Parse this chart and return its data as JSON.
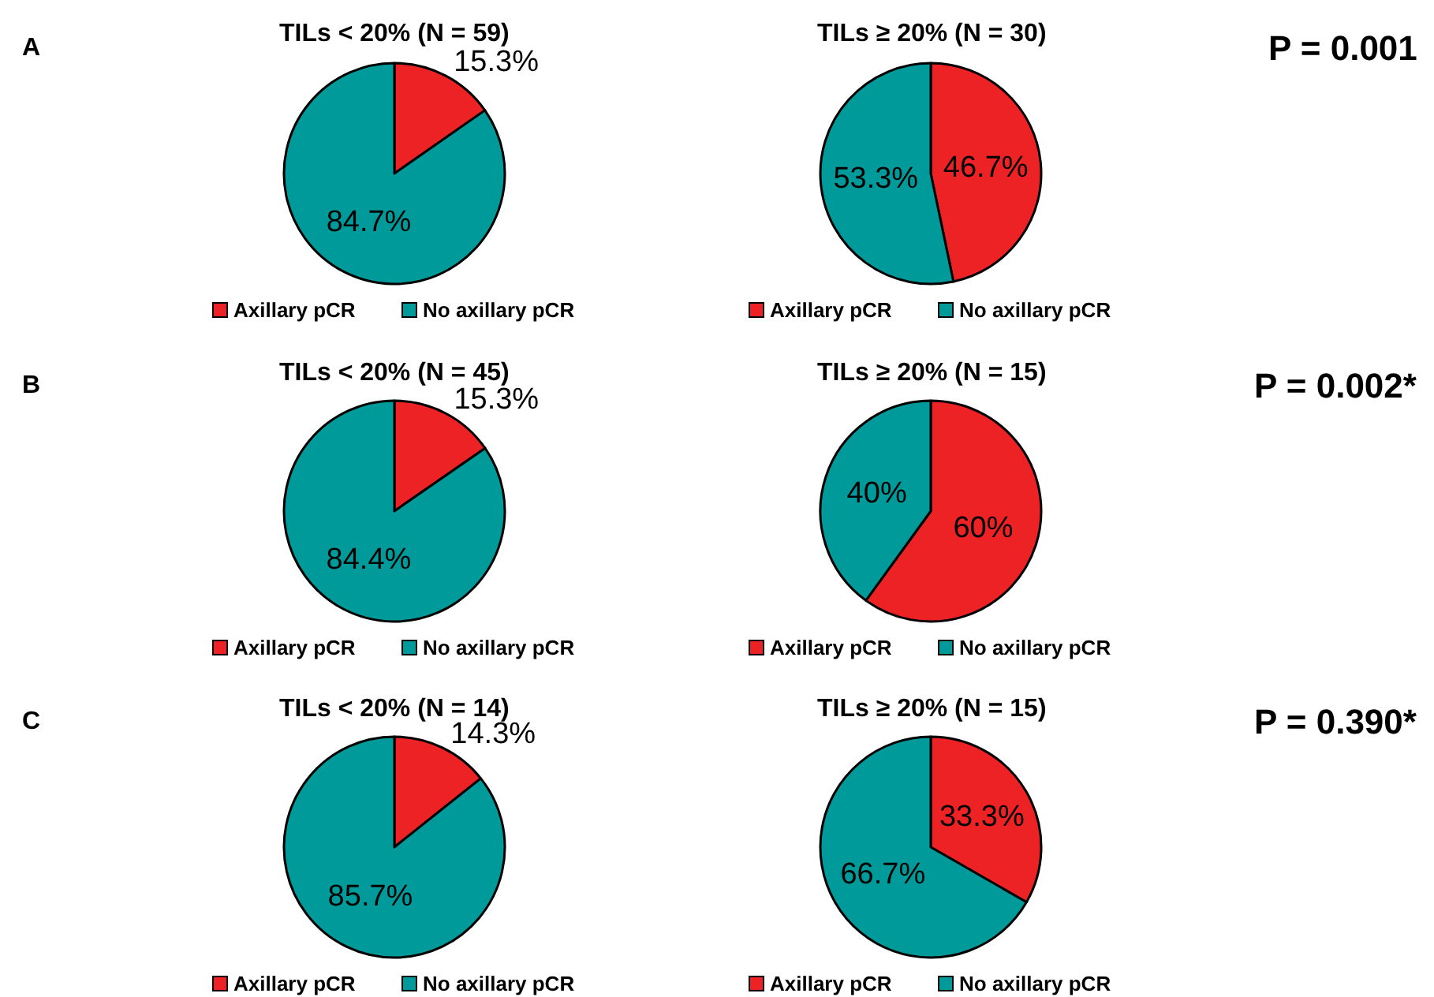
{
  "chart_data": [
    {
      "type": "pie",
      "title": "TILs < 20% (N = 59)",
      "categories": [
        "Axillary pCR",
        "No axillary pCR"
      ],
      "values": [
        15.3,
        84.7
      ],
      "value_labels": [
        "15.3%",
        "84.7%"
      ],
      "colors": [
        "#ed2224",
        "#009a9a"
      ],
      "legend": "bottom",
      "annotations": [
        "A"
      ]
    },
    {
      "type": "pie",
      "title": "TILs ≥ 20% (N = 30)",
      "categories": [
        "Axillary pCR",
        "No axillary pCR"
      ],
      "values": [
        46.7,
        53.3
      ],
      "value_labels": [
        "46.7%",
        "53.3%"
      ],
      "colors": [
        "#ed2224",
        "#009a9a"
      ],
      "legend": "bottom",
      "annotations": [
        "P = 0.001"
      ]
    },
    {
      "type": "pie",
      "title": "TILs < 20% (N = 45)",
      "categories": [
        "Axillary pCR",
        "No axillary pCR"
      ],
      "values": [
        15.3,
        84.4
      ],
      "value_labels": [
        "15.3%",
        "84.4%"
      ],
      "colors": [
        "#ed2224",
        "#009a9a"
      ],
      "legend": "bottom",
      "annotations": [
        "B"
      ]
    },
    {
      "type": "pie",
      "title": "TILs ≥ 20% (N = 15)",
      "categories": [
        "Axillary pCR",
        "No axillary pCR"
      ],
      "values": [
        60,
        40
      ],
      "value_labels": [
        "60%",
        "40%"
      ],
      "colors": [
        "#ed2224",
        "#009a9a"
      ],
      "legend": "bottom",
      "annotations": [
        "P = 0.002*"
      ]
    },
    {
      "type": "pie",
      "title": "TILs < 20% (N = 14)",
      "categories": [
        "Axillary pCR",
        "No axillary pCR"
      ],
      "values": [
        14.3,
        85.7
      ],
      "value_labels": [
        "14.3%",
        "85.7%"
      ],
      "colors": [
        "#ed2224",
        "#009a9a"
      ],
      "legend": "bottom",
      "annotations": [
        "C"
      ]
    },
    {
      "type": "pie",
      "title": "TILs ≥ 20% (N = 15)",
      "categories": [
        "Axillary pCR",
        "No axillary pCR"
      ],
      "values": [
        33.3,
        66.7
      ],
      "value_labels": [
        "33.3%",
        "66.7%"
      ],
      "colors": [
        "#ed2224",
        "#009a9a"
      ],
      "legend": "bottom",
      "annotations": [
        "P = 0.390*"
      ]
    }
  ]
}
